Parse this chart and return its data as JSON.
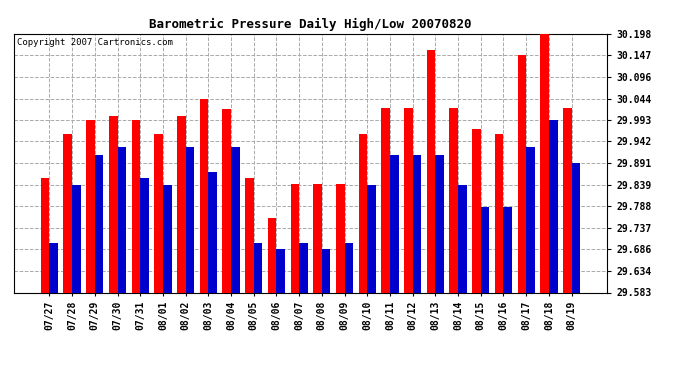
{
  "title": "Barometric Pressure Daily High/Low 20070820",
  "copyright": "Copyright 2007 Cartronics.com",
  "background_color": "#ffffff",
  "plot_background": "#ffffff",
  "grid_color": "#aaaaaa",
  "ylim_min": 29.583,
  "ylim_max": 30.198,
  "yticks": [
    29.583,
    29.634,
    29.686,
    29.737,
    29.788,
    29.839,
    29.891,
    29.942,
    29.993,
    30.044,
    30.096,
    30.147,
    30.198
  ],
  "dates": [
    "07/27",
    "07/28",
    "07/29",
    "07/30",
    "07/31",
    "08/01",
    "08/02",
    "08/03",
    "08/04",
    "08/05",
    "08/06",
    "08/07",
    "08/08",
    "08/09",
    "08/10",
    "08/11",
    "08/12",
    "08/13",
    "08/14",
    "08/15",
    "08/16",
    "08/17",
    "08/18",
    "08/19"
  ],
  "high_values": [
    29.855,
    29.96,
    29.993,
    30.003,
    29.993,
    29.96,
    30.003,
    30.044,
    30.02,
    29.855,
    29.76,
    29.842,
    29.842,
    29.842,
    29.96,
    30.022,
    30.022,
    30.16,
    30.022,
    29.971,
    29.96,
    30.147,
    30.198,
    30.022
  ],
  "low_values": [
    29.7,
    29.839,
    29.91,
    29.93,
    29.855,
    29.839,
    29.93,
    29.87,
    29.93,
    29.7,
    29.686,
    29.7,
    29.686,
    29.7,
    29.839,
    29.91,
    29.91,
    29.91,
    29.839,
    29.786,
    29.786,
    29.93,
    29.993,
    29.891
  ],
  "high_color": "#ff0000",
  "low_color": "#0000cc",
  "bar_width": 0.38,
  "figwidth": 6.9,
  "figheight": 3.75,
  "dpi": 100
}
